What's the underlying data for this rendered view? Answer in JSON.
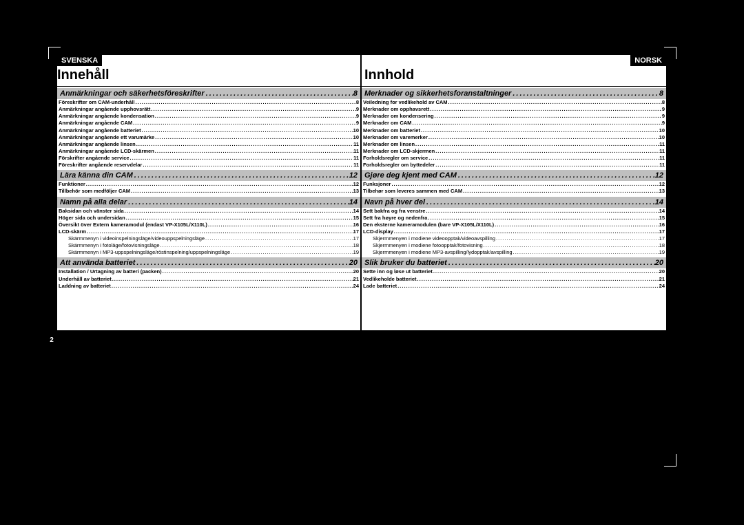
{
  "page_number": "2",
  "left": {
    "lang": "SVENSKA",
    "title": "Innehåll",
    "sections": [
      {
        "header": "Anmärkningar och säkerhetsföreskrifter",
        "page": "8",
        "items": [
          {
            "label": "Föreskrifter om CAM-underhåll",
            "page": "8"
          },
          {
            "label": "Anmärkningar angående upphovsrätt",
            "page": "9"
          },
          {
            "label": "Anmärkningar angående kondensation",
            "page": "9"
          },
          {
            "label": "Anmärkningar angående CAM",
            "page": "9"
          },
          {
            "label": "Anmärkningar angående batteriet",
            "page": "10"
          },
          {
            "label": "Anmärkningar angående ett varumärke",
            "page": "10"
          },
          {
            "label": "Anmärkningar angående linsen",
            "page": "11"
          },
          {
            "label": "Anmärkningar angående LCD-skärmen",
            "page": "11"
          },
          {
            "label": "Förskrifter angående service",
            "page": "11"
          },
          {
            "label": "Föreskrifter angående reservdelar",
            "page": "11"
          }
        ]
      },
      {
        "header": "Lära känna din CAM",
        "page": "12",
        "items": [
          {
            "label": "Funktioner",
            "page": "12"
          },
          {
            "label": "Tillbehör som medföljer CAM",
            "page": "13"
          }
        ]
      },
      {
        "header": "Namn på alla delar",
        "page": "14",
        "items": [
          {
            "label": "Baksidan och vänster sida",
            "page": "14"
          },
          {
            "label": "Höger sida och undersidan",
            "page": "15"
          },
          {
            "label": "Översikt över Extern kameramodul (endast VP-X105L/X110L)",
            "page": "16"
          },
          {
            "label": "LCD-skärm",
            "page": "17"
          },
          {
            "label": "Skärmmenyn i videoinspelningsläge/videouppspelningsläge",
            "page": "17",
            "sub": true
          },
          {
            "label": "Skärmmenyn i fotoläge/fotovisningsläge",
            "page": "18",
            "sub": true
          },
          {
            "label": "Skärmmenyn i MP3-uppspelningsläge/röstinspelning/uppspelningsläge",
            "page": "19",
            "sub": true
          }
        ]
      },
      {
        "header": "Att använda batteriet",
        "page": "20",
        "items": [
          {
            "label": "Installation / Urtagning av batteri (packen)",
            "page": "20"
          },
          {
            "label": "Underhåll av batteriet",
            "page": "21"
          },
          {
            "label": "Laddning av batteriet",
            "page": "24"
          }
        ]
      }
    ]
  },
  "right": {
    "lang": "NORSK",
    "title": "Innhold",
    "sections": [
      {
        "header": "Merknader og sikkerhetsforanstaltninger",
        "page": "8",
        "items": [
          {
            "label": "Veiledning for vedlikehold av CAM",
            "page": "8"
          },
          {
            "label": "Merknader om opphavsrett",
            "page": "9"
          },
          {
            "label": "Merknader om kondensering",
            "page": "9"
          },
          {
            "label": "Merknader om CAM",
            "page": "9"
          },
          {
            "label": "Merknader om batteriet",
            "page": "10"
          },
          {
            "label": "Merknader om varemerker",
            "page": "10"
          },
          {
            "label": "Merknader om linsen",
            "page": "11"
          },
          {
            "label": "Merknader om LCD-skjermen",
            "page": "11"
          },
          {
            "label": "Forholdsregler om service",
            "page": "11"
          },
          {
            "label": "Forholdsregler om byttedeler",
            "page": "11"
          }
        ]
      },
      {
        "header": "Gjøre deg kjent med CAM",
        "page": "12",
        "items": [
          {
            "label": "Funksjoner",
            "page": "12"
          },
          {
            "label": "Tilbehør som leveres sammen med CAM",
            "page": "13"
          }
        ]
      },
      {
        "header": "Navn på hver del",
        "page": "14",
        "items": [
          {
            "label": "Sett bakfra og fra venstre",
            "page": "14"
          },
          {
            "label": "Sett fra høyre og nedenfra",
            "page": "15"
          },
          {
            "label": "Den eksterne kameramodulen (bare VP-X105L/X110L)",
            "page": "16"
          },
          {
            "label": "LCD-display",
            "page": "17"
          },
          {
            "label": "Skjermmenyen i modiene videoopptak/videoavspilling",
            "page": "17",
            "sub": true
          },
          {
            "label": "Skjermmenyen i modiene fotoopptak/fotovisning",
            "page": "18",
            "sub": true
          },
          {
            "label": "Skjermmenyen i modiene MP3-avspilling/lydopptak/avspilling",
            "page": "19",
            "sub": true
          }
        ]
      },
      {
        "header": "Slik bruker du batteriet",
        "page": "20",
        "items": [
          {
            "label": "Sette inn og løse ut batteriet",
            "page": "20"
          },
          {
            "label": "Vedlikeholde batteriet",
            "page": "21"
          },
          {
            "label": "Lade batteriet",
            "page": "24"
          }
        ]
      }
    ]
  }
}
